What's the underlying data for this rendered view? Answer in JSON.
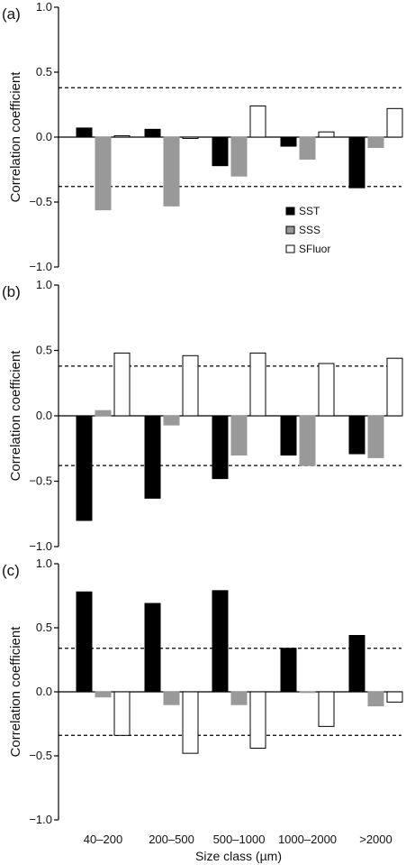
{
  "chart_data": [
    {
      "type": "bar",
      "panel_label": "(a)",
      "ylabel": "Correlation coefficient",
      "ylim": [
        -1.0,
        1.0
      ],
      "yticks": [
        "1.0",
        "0.5",
        "0.0",
        "−0.5",
        "−1.0"
      ],
      "significance_lines": [
        0.38,
        -0.38
      ],
      "categories": [
        "40–200",
        "200–500",
        "500–1000",
        "1000–2000",
        ">2000"
      ],
      "series": [
        {
          "name": "SST",
          "color": "#000000",
          "values": [
            0.07,
            0.06,
            -0.22,
            -0.07,
            -0.39
          ]
        },
        {
          "name": "SSS",
          "color": "#999999",
          "values": [
            -0.56,
            -0.53,
            -0.3,
            -0.17,
            -0.08
          ]
        },
        {
          "name": "SFluor",
          "color": "#ffffff",
          "values": [
            0.01,
            -0.01,
            0.24,
            0.04,
            0.22
          ]
        }
      ],
      "legend": {
        "position": "center-right",
        "entries": [
          "SST",
          "SSS",
          "SFluor"
        ]
      }
    },
    {
      "type": "bar",
      "panel_label": "(b)",
      "ylabel": "Correlation coefficient",
      "ylim": [
        -1.0,
        1.0
      ],
      "yticks": [
        "1.0",
        "0.5",
        "0.0",
        "−0.5",
        "−1.0"
      ],
      "significance_lines": [
        0.38,
        -0.38
      ],
      "categories": [
        "40–200",
        "200–500",
        "500–1000",
        "1000–2000",
        ">2000"
      ],
      "series": [
        {
          "name": "SST",
          "color": "#000000",
          "values": [
            -0.8,
            -0.63,
            -0.48,
            -0.3,
            -0.29
          ]
        },
        {
          "name": "SSS",
          "color": "#999999",
          "values": [
            0.04,
            -0.07,
            -0.3,
            -0.38,
            -0.32
          ]
        },
        {
          "name": "SFluor",
          "color": "#ffffff",
          "values": [
            0.48,
            0.46,
            0.48,
            0.4,
            0.44
          ]
        }
      ]
    },
    {
      "type": "bar",
      "panel_label": "(c)",
      "ylabel": "Correlation coefficient",
      "xlabel": "Size class (µm)",
      "ylim": [
        -1.0,
        1.0
      ],
      "yticks": [
        "1.0",
        "0.5",
        "0.0",
        "−0.5",
        "−1.0"
      ],
      "significance_lines": [
        0.34,
        -0.34
      ],
      "categories": [
        "40–200",
        "200–500",
        "500–1000",
        "1000–2000",
        ">2000"
      ],
      "series": [
        {
          "name": "SST",
          "color": "#000000",
          "values": [
            0.78,
            0.69,
            0.79,
            0.34,
            0.44
          ]
        },
        {
          "name": "SSS",
          "color": "#999999",
          "values": [
            -0.04,
            -0.1,
            -0.1,
            0.0,
            -0.11
          ]
        },
        {
          "name": "SFluor",
          "color": "#ffffff",
          "values": [
            -0.34,
            -0.48,
            -0.44,
            -0.27,
            -0.08
          ]
        }
      ]
    }
  ]
}
